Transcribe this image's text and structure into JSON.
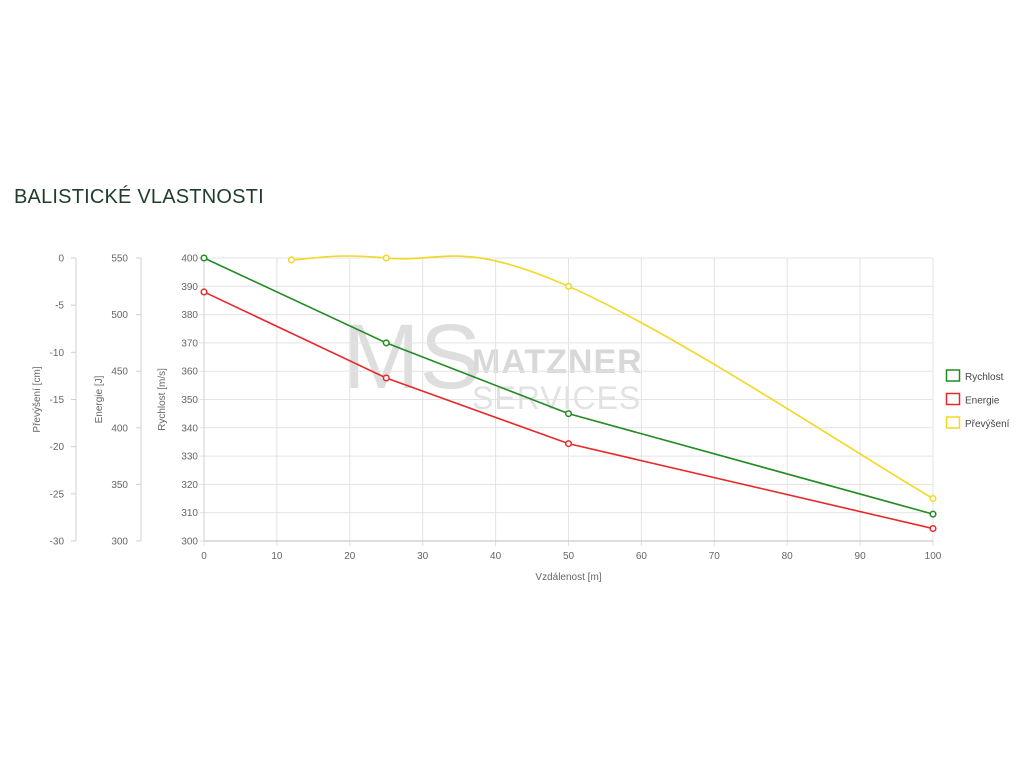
{
  "page": {
    "title": "BALISTICKÉ VLASTNOSTI"
  },
  "watermark": {
    "text_top": "MATZNER",
    "text_bottom": "SERVICES"
  },
  "chart_data": {
    "type": "line",
    "xlabel": "Vzdálenost [m]",
    "xlim": [
      0,
      100
    ],
    "xticks": [
      "0",
      "10",
      "20",
      "30",
      "40",
      "50",
      "60",
      "70",
      "80",
      "90",
      "100"
    ],
    "axes": [
      {
        "id": "rychlost",
        "label": "Rychlost [m/s]",
        "ylim": [
          300,
          400
        ],
        "ticks": [
          "400",
          "390",
          "380",
          "370",
          "360",
          "350",
          "340",
          "330",
          "320",
          "310",
          "300"
        ]
      },
      {
        "id": "energie",
        "label": "Energie [J]",
        "ylim": [
          300,
          550
        ],
        "ticks": [
          "550",
          "500",
          "450",
          "400",
          "350",
          "300"
        ]
      },
      {
        "id": "prevyseni",
        "label": "Převýšení [cm]",
        "ylim": [
          -30,
          0
        ],
        "ticks": [
          "0",
          "-5",
          "-10",
          "-15",
          "-20",
          "-25",
          "-30"
        ]
      }
    ],
    "series": [
      {
        "name": "Rychlost",
        "axis": "rychlost",
        "color": "#228b22",
        "curve": "linear",
        "points": [
          [
            0,
            400
          ],
          [
            25,
            370
          ],
          [
            50,
            345
          ],
          [
            100,
            309.5
          ]
        ]
      },
      {
        "name": "Energie",
        "axis": "energie",
        "color": "#e8292b",
        "curve": "linear",
        "points": [
          [
            0,
            520
          ],
          [
            25,
            444
          ],
          [
            50,
            386
          ],
          [
            100,
            311
          ]
        ]
      },
      {
        "name": "Převýšení",
        "axis": "prevyseni",
        "color": "#f3d81f",
        "curve": "smooth",
        "points": [
          [
            12,
            -0.2
          ],
          [
            25,
            0
          ],
          [
            50,
            -3
          ],
          [
            100,
            -25.5
          ]
        ]
      }
    ],
    "grid": true,
    "legend": "right"
  }
}
